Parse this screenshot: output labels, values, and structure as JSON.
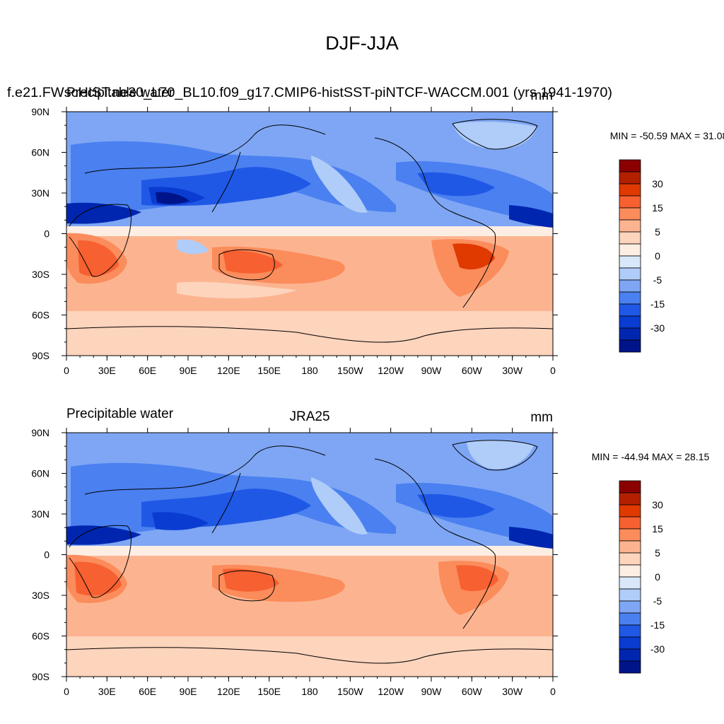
{
  "figure": {
    "title": "DJF-JJA"
  },
  "chart_data": [
    {
      "type": "heatmap",
      "left_title": "Precipitable water",
      "center_title": "f.e21.FWscHIST.ne30_L70_BL10.f09_g17.CMIP6-histSST-piNTCF-WACCM.001 (yrs 1941-1970)",
      "units": "mm",
      "stats": "MIN = -50.59 MAX =  31.08",
      "x_tick_labels": [
        "0",
        "30E",
        "60E",
        "90E",
        "120E",
        "150E",
        "180",
        "150W",
        "120W",
        "90W",
        "60W",
        "30W",
        "0"
      ],
      "y_tick_labels": [
        "90N",
        "60N",
        "30N",
        "0",
        "30S",
        "60S",
        "90S"
      ],
      "xlim": [
        0,
        360
      ],
      "ylim": [
        -90,
        90
      ],
      "colorbar": {
        "levels": [
          -35,
          -30,
          -25,
          -20,
          -15,
          -10,
          -5,
          -2.5,
          0,
          2.5,
          5,
          10,
          15,
          20,
          25,
          30,
          35
        ],
        "labels": [
          "30",
          "15",
          "5",
          "0",
          "-5",
          "-15",
          "-30"
        ]
      }
    },
    {
      "type": "heatmap",
      "left_title": "Precipitable water",
      "center_title": "JRA25",
      "units": "mm",
      "stats": "MIN = -44.94 MAX =  28.15",
      "x_tick_labels": [
        "0",
        "30E",
        "60E",
        "90E",
        "120E",
        "150E",
        "180",
        "150W",
        "120W",
        "90W",
        "60W",
        "30W",
        "0"
      ],
      "y_tick_labels": [
        "90N",
        "60N",
        "30N",
        "0",
        "30S",
        "60S",
        "90S"
      ],
      "xlim": [
        0,
        360
      ],
      "ylim": [
        -90,
        90
      ],
      "colorbar": {
        "levels": [
          -35,
          -30,
          -25,
          -20,
          -15,
          -10,
          -5,
          -2.5,
          0,
          2.5,
          5,
          10,
          15,
          20,
          25,
          30,
          35
        ],
        "labels": [
          "30",
          "15",
          "5",
          "0",
          "-5",
          "-15",
          "-30"
        ]
      }
    }
  ],
  "palette": [
    "#8b0000",
    "#b22000",
    "#e03a00",
    "#f76030",
    "#fb8c5c",
    "#fcb490",
    "#fdd4bc",
    "#fdeee4",
    "#d8e8fa",
    "#b0ccf8",
    "#7ea6f4",
    "#4a80f0",
    "#2058e6",
    "#0a3cd2",
    "#0026b0",
    "#00148a"
  ]
}
